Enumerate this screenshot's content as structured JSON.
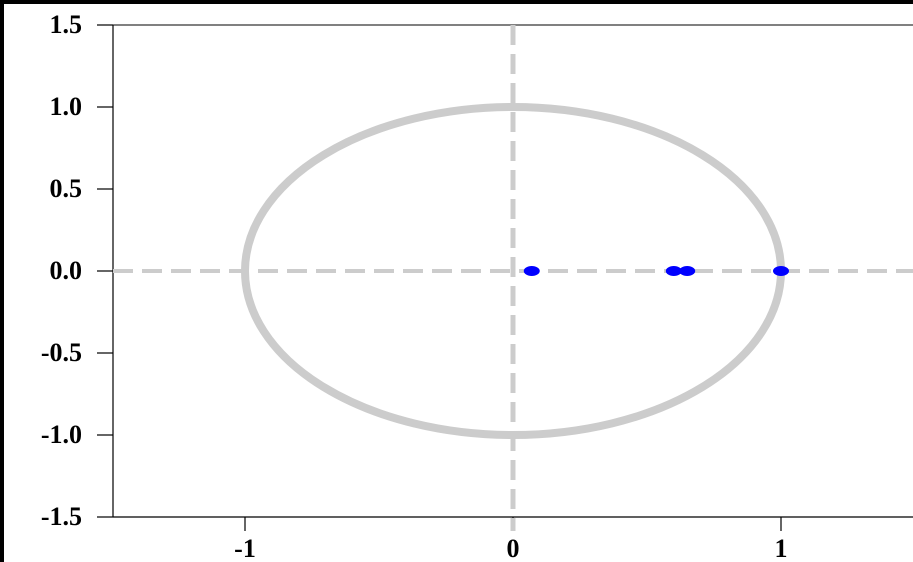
{
  "chart_data": {
    "type": "scatter",
    "title": "",
    "xlabel": "",
    "ylabel": "",
    "xlim": [
      -1.5,
      1.5
    ],
    "ylim": [
      -1.5,
      1.5
    ],
    "x_ticks": [
      -1,
      0,
      1
    ],
    "x_tick_labels": [
      "-1",
      "0",
      "1"
    ],
    "y_ticks": [
      1.5,
      1.0,
      0.5,
      0.0,
      -0.5,
      -1.0,
      -1.5
    ],
    "y_tick_labels": [
      "1.5",
      "1.0",
      "0.5",
      "0.0",
      "-0.5",
      "-1.0",
      "-1.5"
    ],
    "unit_circle": {
      "radius": 1,
      "center": [
        0,
        0
      ],
      "color": "#cccccc"
    },
    "reference_lines": {
      "x": 0,
      "y": 0,
      "style": "dashed",
      "color": "#cccccc"
    },
    "grid": false,
    "legend": "none",
    "series": [
      {
        "points": [
          {
            "x": 0.07,
            "y": 0.0
          },
          {
            "x": 0.6,
            "y": 0.0
          },
          {
            "x": 0.65,
            "y": 0.0
          },
          {
            "x": 1.0,
            "y": 0.0
          }
        ],
        "color": "#0000ff"
      }
    ]
  }
}
